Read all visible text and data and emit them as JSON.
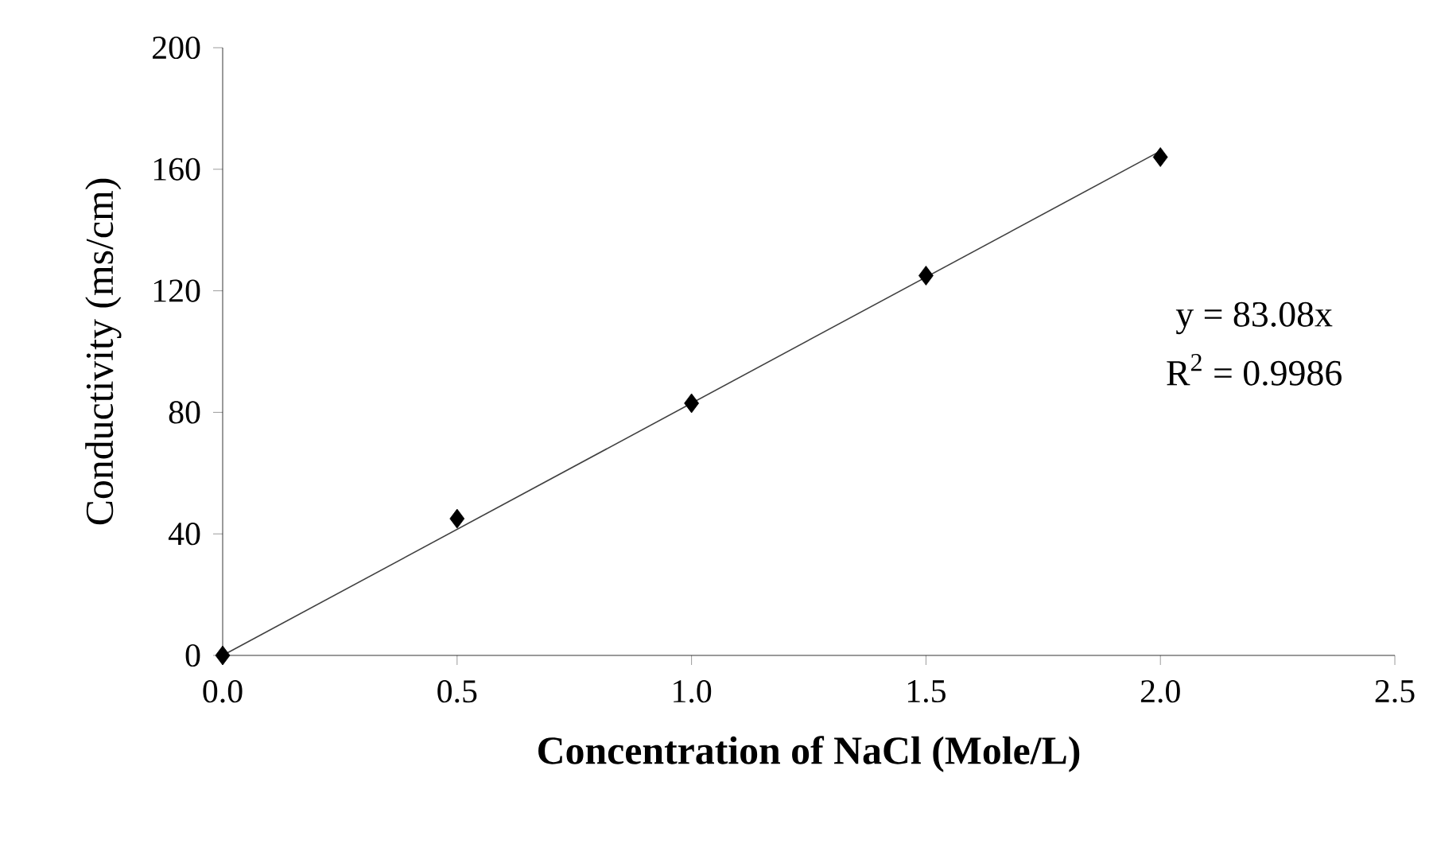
{
  "chart_data": {
    "type": "scatter",
    "xlabel": "Concentration of NaCl (Mole/L)",
    "ylabel": "Conductivity (ms/cm)",
    "xlim": [
      0,
      2.5
    ],
    "ylim": [
      0,
      200
    ],
    "xticks": [
      {
        "value": 0,
        "label": "0.0"
      },
      {
        "value": 0.5,
        "label": "0.5"
      },
      {
        "value": 1,
        "label": "1.0"
      },
      {
        "value": 1.5,
        "label": "1.5"
      },
      {
        "value": 2,
        "label": "2.0"
      },
      {
        "value": 2.5,
        "label": "2.5"
      }
    ],
    "yticks": [
      0,
      40,
      80,
      120,
      160,
      200
    ],
    "grid": false,
    "series": [
      {
        "color": "#000000",
        "marker": "diamond",
        "x": [
          0,
          0.5,
          1,
          1.5,
          2
        ],
        "values": [
          0,
          45,
          83,
          125,
          164
        ]
      },
      {
        "type": "line",
        "color": "#404040",
        "line_style": "solid",
        "x": [
          0,
          2
        ],
        "values": [
          0,
          166
        ]
      }
    ],
    "annotations": [
      "y = 83.08x",
      "R$^{2}$ = 0.9986"
    ]
  }
}
